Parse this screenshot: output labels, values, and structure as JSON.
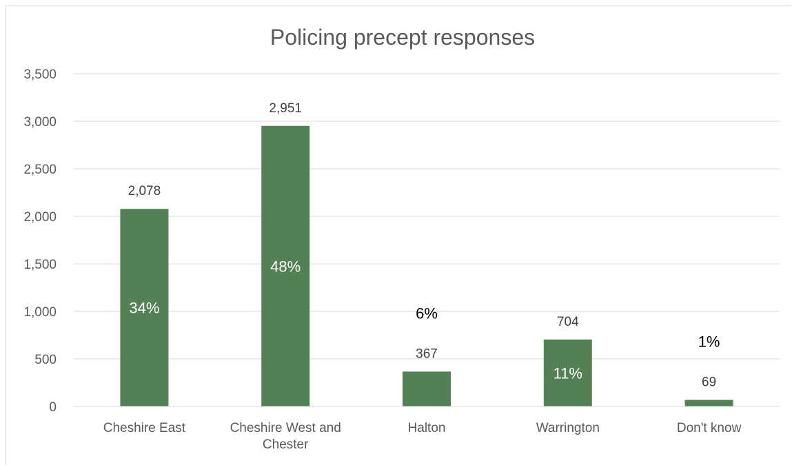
{
  "chart_data": {
    "type": "bar",
    "title": "Policing precept responses",
    "categories": [
      "Cheshire East",
      "Cheshire West and Chester",
      "Halton",
      "Warrington",
      "Don't know"
    ],
    "category_lines": [
      [
        "Cheshire East"
      ],
      [
        "Cheshire West and",
        "Chester"
      ],
      [
        "Halton"
      ],
      [
        "Warrington"
      ],
      [
        "Don't know"
      ]
    ],
    "values": [
      2078,
      2951,
      367,
      704,
      69
    ],
    "value_labels": [
      "2,078",
      "2,951",
      "367",
      "704",
      "69"
    ],
    "percent_labels": [
      "34%",
      "48%",
      "6%",
      "11%",
      "1%"
    ],
    "y_ticks": [
      "0",
      "500",
      "1,000",
      "1,500",
      "2,000",
      "2,500",
      "3,000",
      "3,500"
    ],
    "ylim": [
      0,
      3500
    ],
    "grid": true,
    "bar_color": "#548056",
    "grid_color": "#d9d9d9"
  }
}
